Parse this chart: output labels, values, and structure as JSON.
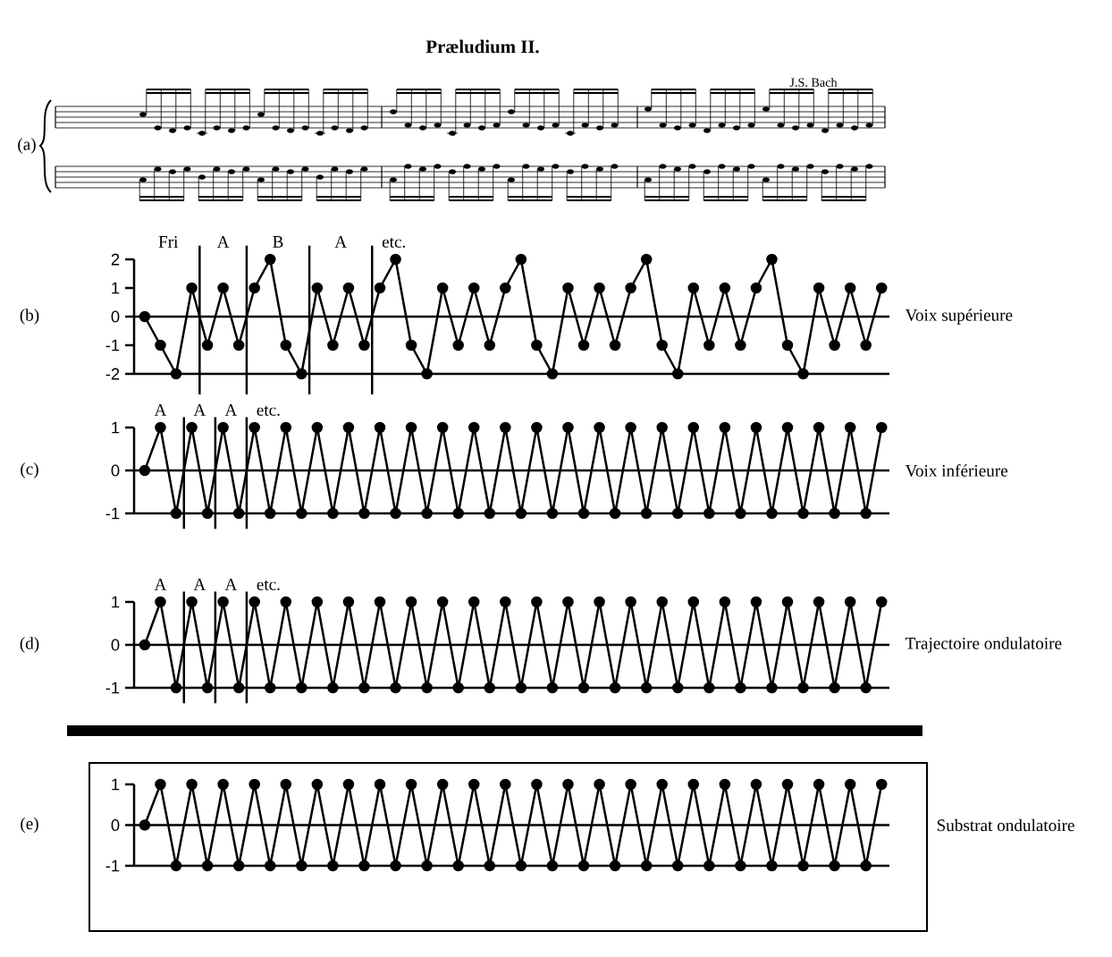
{
  "chart_data": [
    {
      "type": "other",
      "title": "Præludium II.",
      "subtitle": "J.S. Bach",
      "annotations": [
        "(a)"
      ]
    },
    {
      "type": "line",
      "categories": [
        null,
        null,
        null,
        null,
        null,
        null,
        null,
        null,
        null,
        null,
        null,
        null,
        null,
        null,
        null,
        null,
        null,
        null,
        null,
        null,
        null,
        null,
        null,
        null,
        null,
        null,
        null,
        null,
        null,
        null,
        null,
        null,
        null,
        null,
        null,
        null,
        null,
        null,
        null,
        null,
        null,
        null,
        null,
        null,
        null,
        null,
        null,
        null
      ],
      "ylim": [
        -2,
        2
      ],
      "yticks": [
        -2,
        -1,
        0,
        1,
        2
      ],
      "tick_labels": "y",
      "marker": "circle",
      "line_style": "solid",
      "series": [
        {
          "name": "Voix supérieure",
          "color": "#000000",
          "values": [
            0,
            -1,
            -2,
            1,
            -1,
            1,
            -1,
            1,
            2,
            -1,
            -2,
            1,
            -1,
            1,
            -1,
            1,
            2,
            -1,
            -2,
            1,
            -1,
            1,
            -1,
            1,
            2,
            -1,
            -2,
            1,
            -1,
            1,
            -1,
            1,
            2,
            -1,
            -2,
            1,
            -1,
            1,
            -1,
            1,
            2,
            -1,
            -2,
            1,
            -1,
            1,
            -1,
            1
          ]
        }
      ],
      "ref_lines": [
        {
          "axis": "y",
          "value": 0
        }
      ],
      "annotations": [
        "(b)",
        "Fri",
        "A",
        "B",
        "A",
        "etc."
      ]
    },
    {
      "type": "line",
      "categories": [
        null,
        null,
        null,
        null,
        null,
        null,
        null,
        null,
        null,
        null,
        null,
        null,
        null,
        null,
        null,
        null,
        null,
        null,
        null,
        null,
        null,
        null,
        null,
        null,
        null,
        null,
        null,
        null,
        null,
        null,
        null,
        null,
        null,
        null,
        null,
        null,
        null,
        null,
        null,
        null,
        null,
        null,
        null,
        null,
        null,
        null,
        null,
        null
      ],
      "ylim": [
        -1,
        1
      ],
      "yticks": [
        -1,
        0,
        1
      ],
      "tick_labels": "y",
      "marker": "circle",
      "line_style": "solid",
      "series": [
        {
          "name": "Voix inférieure",
          "color": "#000000",
          "values": [
            0,
            1,
            -1,
            1,
            -1,
            1,
            -1,
            1,
            -1,
            1,
            -1,
            1,
            -1,
            1,
            -1,
            1,
            -1,
            1,
            -1,
            1,
            -1,
            1,
            -1,
            1,
            -1,
            1,
            -1,
            1,
            -1,
            1,
            -1,
            1,
            -1,
            1,
            -1,
            1,
            -1,
            1,
            -1,
            1,
            -1,
            1,
            -1,
            1,
            -1,
            1,
            -1,
            1
          ]
        }
      ],
      "ref_lines": [
        {
          "axis": "y",
          "value": 0
        }
      ],
      "annotations": [
        "(c)",
        "A",
        "A",
        "A",
        "etc."
      ]
    },
    {
      "type": "line",
      "categories": [
        null,
        null,
        null,
        null,
        null,
        null,
        null,
        null,
        null,
        null,
        null,
        null,
        null,
        null,
        null,
        null,
        null,
        null,
        null,
        null,
        null,
        null,
        null,
        null,
        null,
        null,
        null,
        null,
        null,
        null,
        null,
        null,
        null,
        null,
        null,
        null,
        null,
        null,
        null,
        null,
        null,
        null,
        null,
        null,
        null,
        null,
        null,
        null
      ],
      "ylim": [
        -1,
        1
      ],
      "yticks": [
        -1,
        0,
        1
      ],
      "tick_labels": "y",
      "marker": "circle",
      "line_style": "solid",
      "series": [
        {
          "name": "Trajectoire ondulatoire",
          "color": "#000000",
          "values": [
            0,
            1,
            -1,
            1,
            -1,
            1,
            -1,
            1,
            -1,
            1,
            -1,
            1,
            -1,
            1,
            -1,
            1,
            -1,
            1,
            -1,
            1,
            -1,
            1,
            -1,
            1,
            -1,
            1,
            -1,
            1,
            -1,
            1,
            -1,
            1,
            -1,
            1,
            -1,
            1,
            -1,
            1,
            -1,
            1,
            -1,
            1,
            -1,
            1,
            -1,
            1,
            -1,
            1
          ]
        }
      ],
      "ref_lines": [
        {
          "axis": "y",
          "value": 0
        }
      ],
      "annotations": [
        "(d)",
        "A",
        "A",
        "A",
        "etc."
      ]
    },
    {
      "type": "line",
      "categories": [
        null,
        null,
        null,
        null,
        null,
        null,
        null,
        null,
        null,
        null,
        null,
        null,
        null,
        null,
        null,
        null,
        null,
        null,
        null,
        null,
        null,
        null,
        null,
        null,
        null,
        null,
        null,
        null,
        null,
        null,
        null,
        null,
        null,
        null,
        null,
        null,
        null,
        null,
        null,
        null,
        null,
        null,
        null,
        null,
        null,
        null,
        null,
        null
      ],
      "ylim": [
        -1,
        1
      ],
      "yticks": [
        -1,
        0,
        1
      ],
      "tick_labels": "y",
      "marker": "circle",
      "line_style": "solid",
      "series": [
        {
          "name": "Substrat ondulatoire",
          "color": "#000000",
          "values": [
            0,
            1,
            -1,
            1,
            -1,
            1,
            -1,
            1,
            -1,
            1,
            -1,
            1,
            -1,
            1,
            -1,
            1,
            -1,
            1,
            -1,
            1,
            -1,
            1,
            -1,
            1,
            -1,
            1,
            -1,
            1,
            -1,
            1,
            -1,
            1,
            -1,
            1,
            -1,
            1,
            -1,
            1,
            -1,
            1,
            -1,
            1,
            -1,
            1,
            -1,
            1,
            -1,
            1
          ]
        }
      ],
      "ref_lines": [
        {
          "axis": "y",
          "value": 0
        }
      ],
      "annotations": [
        "(e)"
      ]
    }
  ]
}
